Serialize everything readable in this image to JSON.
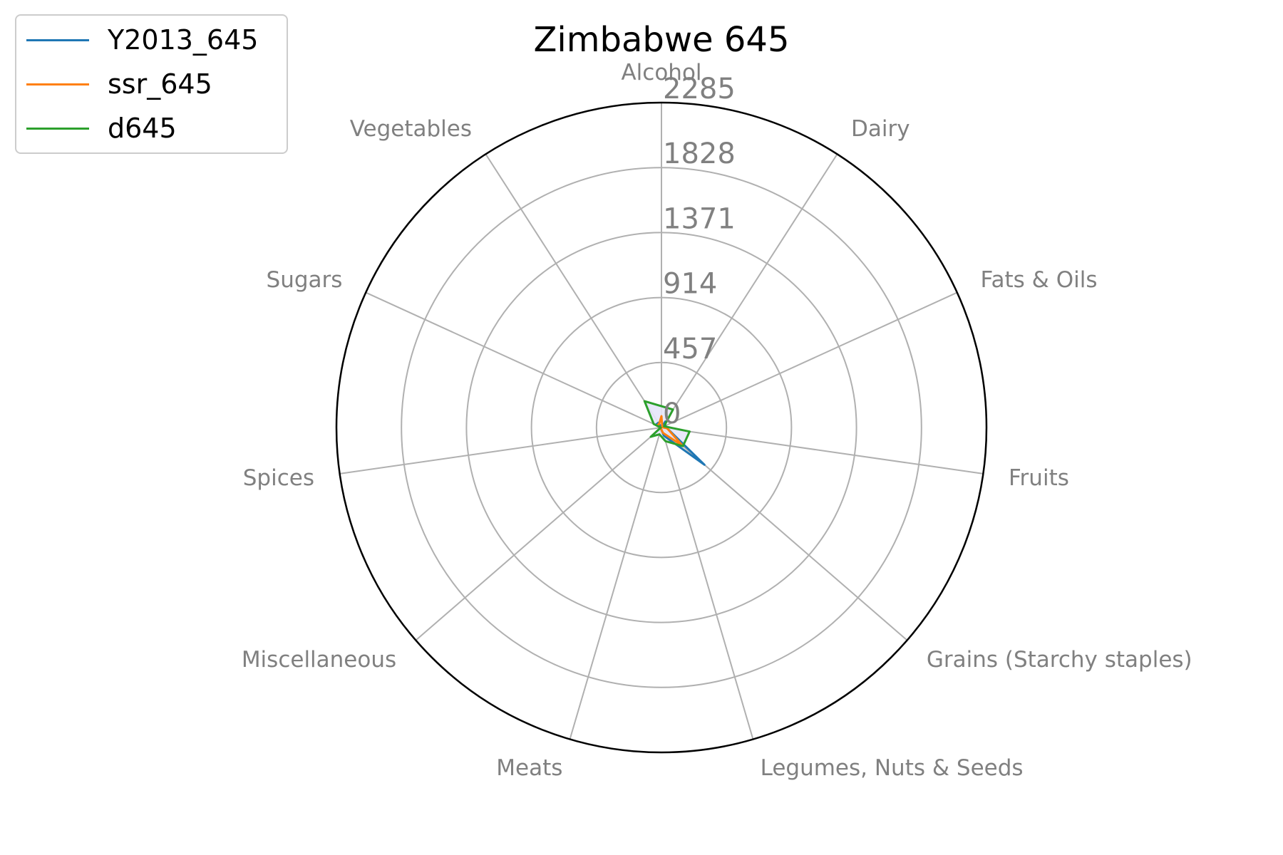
{
  "chart_data": {
    "type": "radar",
    "title": "Zimbabwe 645",
    "categories": [
      "Alcohol",
      "Dairy",
      "Fats & Oils",
      "Fruits",
      "Grains (Starchy staples)",
      "Legumes, Nuts & Seeds",
      "Meats",
      "Miscellaneous",
      "Spices",
      "Sugars",
      "Vegetables"
    ],
    "radial_ticks": [
      "0",
      "457",
      "914",
      "1371",
      "1828",
      "2285"
    ],
    "rlim": [
      0,
      2285
    ],
    "grid": true,
    "legend_position": "top-left",
    "fill_color": "#e6e6fa",
    "series": [
      {
        "name": "Y2013_645",
        "color": "#1f77b4",
        "values": [
          0,
          50,
          30,
          40,
          400,
          60,
          10,
          15,
          5,
          45,
          40
        ]
      },
      {
        "name": "ssr_645",
        "color": "#ff7f0e",
        "values": [
          80,
          10,
          5,
          40,
          200,
          40,
          10,
          15,
          5,
          35,
          30
        ]
      },
      {
        "name": "d645",
        "color": "#2ca02c",
        "values": [
          150,
          150,
          20,
          200,
          200,
          100,
          50,
          100,
          5,
          60,
          220
        ]
      }
    ]
  }
}
